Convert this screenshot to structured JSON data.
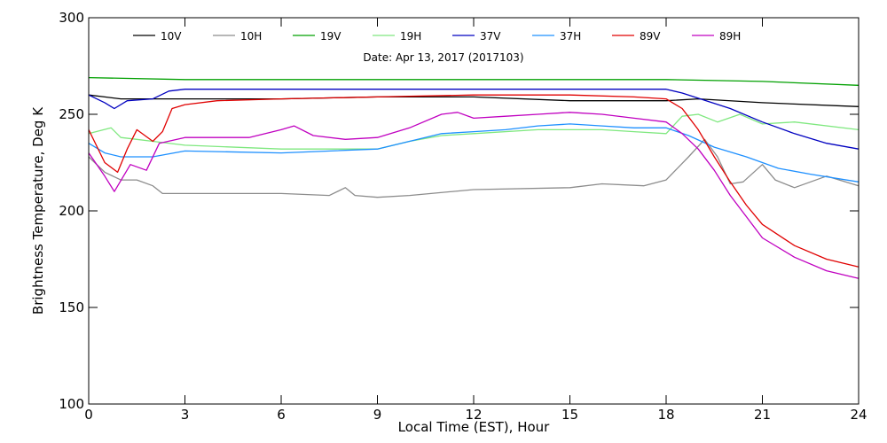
{
  "chart_data": {
    "type": "line",
    "title": "Date: Apr 13, 2017 (2017103)",
    "xlabel": "Local Time (EST), Hour",
    "ylabel": "Brightness Temperature, Deg K",
    "xlim": [
      0,
      24
    ],
    "ylim": [
      100,
      300
    ],
    "xticks": [
      0,
      3,
      6,
      9,
      12,
      15,
      18,
      21,
      24
    ],
    "yticks": [
      100,
      150,
      200,
      250,
      300
    ],
    "grid": false,
    "legend_position": "top",
    "series": [
      {
        "name": "10V",
        "color": "#000000",
        "points": [
          [
            0,
            260
          ],
          [
            0.5,
            259
          ],
          [
            1,
            258
          ],
          [
            2,
            258
          ],
          [
            3,
            258
          ],
          [
            6,
            258
          ],
          [
            9,
            259
          ],
          [
            12,
            259
          ],
          [
            15,
            257
          ],
          [
            18,
            257
          ],
          [
            19,
            258
          ],
          [
            21,
            256
          ],
          [
            24,
            254
          ]
        ]
      },
      {
        "name": "10H",
        "color": "#8c8c8c",
        "points": [
          [
            0,
            228
          ],
          [
            0.5,
            220
          ],
          [
            1,
            216
          ],
          [
            1.5,
            216
          ],
          [
            2,
            213
          ],
          [
            2.3,
            209
          ],
          [
            3,
            209
          ],
          [
            6,
            209
          ],
          [
            7.5,
            208
          ],
          [
            8,
            212
          ],
          [
            8.3,
            208
          ],
          [
            9,
            207
          ],
          [
            10,
            208
          ],
          [
            12,
            211
          ],
          [
            15,
            212
          ],
          [
            16,
            214
          ],
          [
            17.3,
            213
          ],
          [
            18,
            216
          ],
          [
            18.7,
            228
          ],
          [
            19.2,
            237
          ],
          [
            19.6,
            228
          ],
          [
            20,
            214
          ],
          [
            20.4,
            215
          ],
          [
            21,
            224
          ],
          [
            21.4,
            216
          ],
          [
            22,
            212
          ],
          [
            23,
            218
          ],
          [
            24,
            213
          ]
        ]
      },
      {
        "name": "19V",
        "color": "#00a000",
        "points": [
          [
            0,
            269
          ],
          [
            3,
            268
          ],
          [
            6,
            268
          ],
          [
            9,
            268
          ],
          [
            12,
            268
          ],
          [
            15,
            268
          ],
          [
            18,
            268
          ],
          [
            21,
            267
          ],
          [
            24,
            265
          ]
        ]
      },
      {
        "name": "19H",
        "color": "#7fe87f",
        "points": [
          [
            0,
            240
          ],
          [
            0.7,
            243
          ],
          [
            1,
            238
          ],
          [
            1.5,
            237
          ],
          [
            2,
            236
          ],
          [
            3,
            234
          ],
          [
            6,
            232
          ],
          [
            9,
            232
          ],
          [
            10,
            236
          ],
          [
            11,
            239
          ],
          [
            12,
            240
          ],
          [
            14,
            242
          ],
          [
            16,
            242
          ],
          [
            17,
            241
          ],
          [
            18,
            240
          ],
          [
            18.5,
            249
          ],
          [
            19,
            250
          ],
          [
            19.6,
            246
          ],
          [
            20.3,
            250
          ],
          [
            21,
            245
          ],
          [
            22,
            246
          ],
          [
            24,
            242
          ]
        ]
      },
      {
        "name": "37V",
        "color": "#0000c0",
        "points": [
          [
            0,
            260
          ],
          [
            0.5,
            256
          ],
          [
            0.8,
            253
          ],
          [
            1.2,
            257
          ],
          [
            2,
            258
          ],
          [
            2.5,
            262
          ],
          [
            3,
            263
          ],
          [
            6,
            263
          ],
          [
            9,
            263
          ],
          [
            12,
            263
          ],
          [
            15,
            263
          ],
          [
            18,
            263
          ],
          [
            18.5,
            261
          ],
          [
            20,
            253
          ],
          [
            21,
            246
          ],
          [
            22,
            240
          ],
          [
            23,
            235
          ],
          [
            24,
            232
          ]
        ]
      },
      {
        "name": "37H",
        "color": "#1e90ff",
        "points": [
          [
            0,
            235
          ],
          [
            0.5,
            230
          ],
          [
            1,
            228
          ],
          [
            2,
            228
          ],
          [
            3,
            231
          ],
          [
            6,
            230
          ],
          [
            9,
            232
          ],
          [
            10,
            236
          ],
          [
            11,
            240
          ],
          [
            12,
            241
          ],
          [
            13,
            242
          ],
          [
            14,
            244
          ],
          [
            15,
            245
          ],
          [
            16,
            244
          ],
          [
            17,
            243
          ],
          [
            18,
            243
          ],
          [
            18.7,
            239
          ],
          [
            19.5,
            233
          ],
          [
            20.5,
            228
          ],
          [
            21.5,
            222
          ],
          [
            22.5,
            219
          ],
          [
            24,
            215
          ]
        ]
      },
      {
        "name": "89V",
        "color": "#e00000",
        "points": [
          [
            0,
            242
          ],
          [
            0.5,
            225
          ],
          [
            0.9,
            220
          ],
          [
            1.2,
            232
          ],
          [
            1.5,
            242
          ],
          [
            2,
            236
          ],
          [
            2.3,
            241
          ],
          [
            2.6,
            253
          ],
          [
            3,
            255
          ],
          [
            4,
            257
          ],
          [
            6,
            258
          ],
          [
            9,
            259
          ],
          [
            12,
            260
          ],
          [
            15,
            260
          ],
          [
            17,
            259
          ],
          [
            18,
            258
          ],
          [
            18.5,
            253
          ],
          [
            19,
            242
          ],
          [
            19.5,
            228
          ],
          [
            20,
            215
          ],
          [
            20.5,
            203
          ],
          [
            21,
            193
          ],
          [
            22,
            182
          ],
          [
            23,
            175
          ],
          [
            24,
            171
          ]
        ]
      },
      {
        "name": "89H",
        "color": "#c000c0",
        "points": [
          [
            0,
            230
          ],
          [
            0.5,
            218
          ],
          [
            0.8,
            210
          ],
          [
            1.3,
            224
          ],
          [
            1.8,
            221
          ],
          [
            2.2,
            235
          ],
          [
            3,
            238
          ],
          [
            4,
            238
          ],
          [
            5,
            238
          ],
          [
            6,
            242
          ],
          [
            6.4,
            244
          ],
          [
            7,
            239
          ],
          [
            8,
            237
          ],
          [
            9,
            238
          ],
          [
            10,
            243
          ],
          [
            11,
            250
          ],
          [
            11.5,
            251
          ],
          [
            12,
            248
          ],
          [
            13,
            249
          ],
          [
            14,
            250
          ],
          [
            15,
            251
          ],
          [
            16,
            250
          ],
          [
            17,
            248
          ],
          [
            18,
            246
          ],
          [
            18.5,
            240
          ],
          [
            19,
            232
          ],
          [
            19.5,
            221
          ],
          [
            20,
            208
          ],
          [
            20.5,
            197
          ],
          [
            21,
            186
          ],
          [
            22,
            176
          ],
          [
            23,
            169
          ],
          [
            24,
            165
          ]
        ]
      }
    ]
  }
}
